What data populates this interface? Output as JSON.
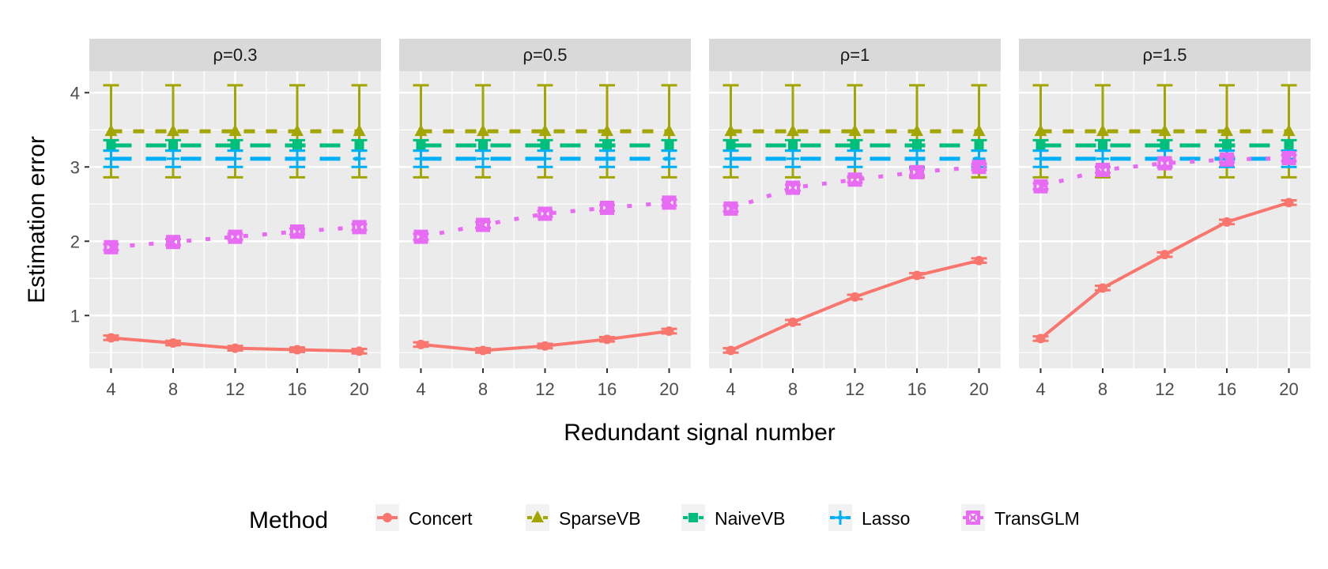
{
  "chart_data": {
    "type": "line",
    "xlabel": "Redundant signal number",
    "ylabel": "Estimation error",
    "x": [
      4,
      8,
      12,
      16,
      20
    ],
    "x_ticks": [
      "4",
      "8",
      "12",
      "16",
      "20"
    ],
    "y_ticks": [
      "1",
      "2",
      "3",
      "4"
    ],
    "xlim": [
      2.6,
      21.4
    ],
    "ylim": [
      0.29,
      4.29
    ],
    "grid": true,
    "legend": {
      "title": "Method",
      "position": "bottom"
    },
    "panels": [
      {
        "label": "ρ=0.3",
        "series": {
          "Concert": [
            0.7,
            0.63,
            0.56,
            0.54,
            0.52
          ],
          "SparseVB": [
            3.48,
            3.48,
            3.48,
            3.48,
            3.48
          ],
          "NaiveVB": [
            3.29,
            3.29,
            3.29,
            3.29,
            3.29
          ],
          "Lasso": [
            3.11,
            3.11,
            3.11,
            3.11,
            3.11
          ],
          "TransGLM": [
            1.92,
            1.99,
            2.06,
            2.13,
            2.19
          ]
        }
      },
      {
        "label": "ρ=0.5",
        "series": {
          "Concert": [
            0.61,
            0.53,
            0.59,
            0.68,
            0.79
          ],
          "SparseVB": [
            3.48,
            3.48,
            3.48,
            3.48,
            3.48
          ],
          "NaiveVB": [
            3.29,
            3.29,
            3.29,
            3.29,
            3.29
          ],
          "Lasso": [
            3.11,
            3.11,
            3.11,
            3.11,
            3.11
          ],
          "TransGLM": [
            2.06,
            2.22,
            2.37,
            2.45,
            2.52
          ]
        }
      },
      {
        "label": "ρ=1",
        "series": {
          "Concert": [
            0.53,
            0.91,
            1.25,
            1.54,
            1.74
          ],
          "SparseVB": [
            3.48,
            3.48,
            3.48,
            3.48,
            3.48
          ],
          "NaiveVB": [
            3.29,
            3.29,
            3.29,
            3.29,
            3.29
          ],
          "Lasso": [
            3.11,
            3.11,
            3.11,
            3.11,
            3.11
          ],
          "TransGLM": [
            2.44,
            2.72,
            2.83,
            2.93,
            3.0
          ]
        }
      },
      {
        "label": "ρ=1.5",
        "series": {
          "Concert": [
            0.69,
            1.37,
            1.82,
            2.26,
            2.52
          ],
          "SparseVB": [
            3.48,
            3.48,
            3.48,
            3.48,
            3.48
          ],
          "NaiveVB": [
            3.29,
            3.29,
            3.29,
            3.29,
            3.29
          ],
          "Lasso": [
            3.11,
            3.11,
            3.11,
            3.11,
            3.11
          ],
          "TransGLM": [
            2.74,
            2.96,
            3.05,
            3.1,
            3.12
          ]
        }
      }
    ],
    "error_halfwidth": {
      "Concert": 0.03,
      "SparseVB": [
        0.62,
        0.62
      ],
      "NaiveVB": 0.07,
      "Lasso": 0.11,
      "TransGLM": 0.04
    },
    "series_meta": [
      {
        "name": "Concert",
        "color": "#F8766D",
        "line": "solid",
        "shape": "circle"
      },
      {
        "name": "SparseVB",
        "color": "#A3A500",
        "line": "dashed",
        "shape": "triangle"
      },
      {
        "name": "NaiveVB",
        "color": "#00BF7D",
        "line": "longdash",
        "shape": "square"
      },
      {
        "name": "Lasso",
        "color": "#00B0F6",
        "line": "longdash",
        "shape": "plus"
      },
      {
        "name": "TransGLM",
        "color": "#E76BF3",
        "line": "dotted",
        "shape": "boxcross"
      }
    ]
  }
}
